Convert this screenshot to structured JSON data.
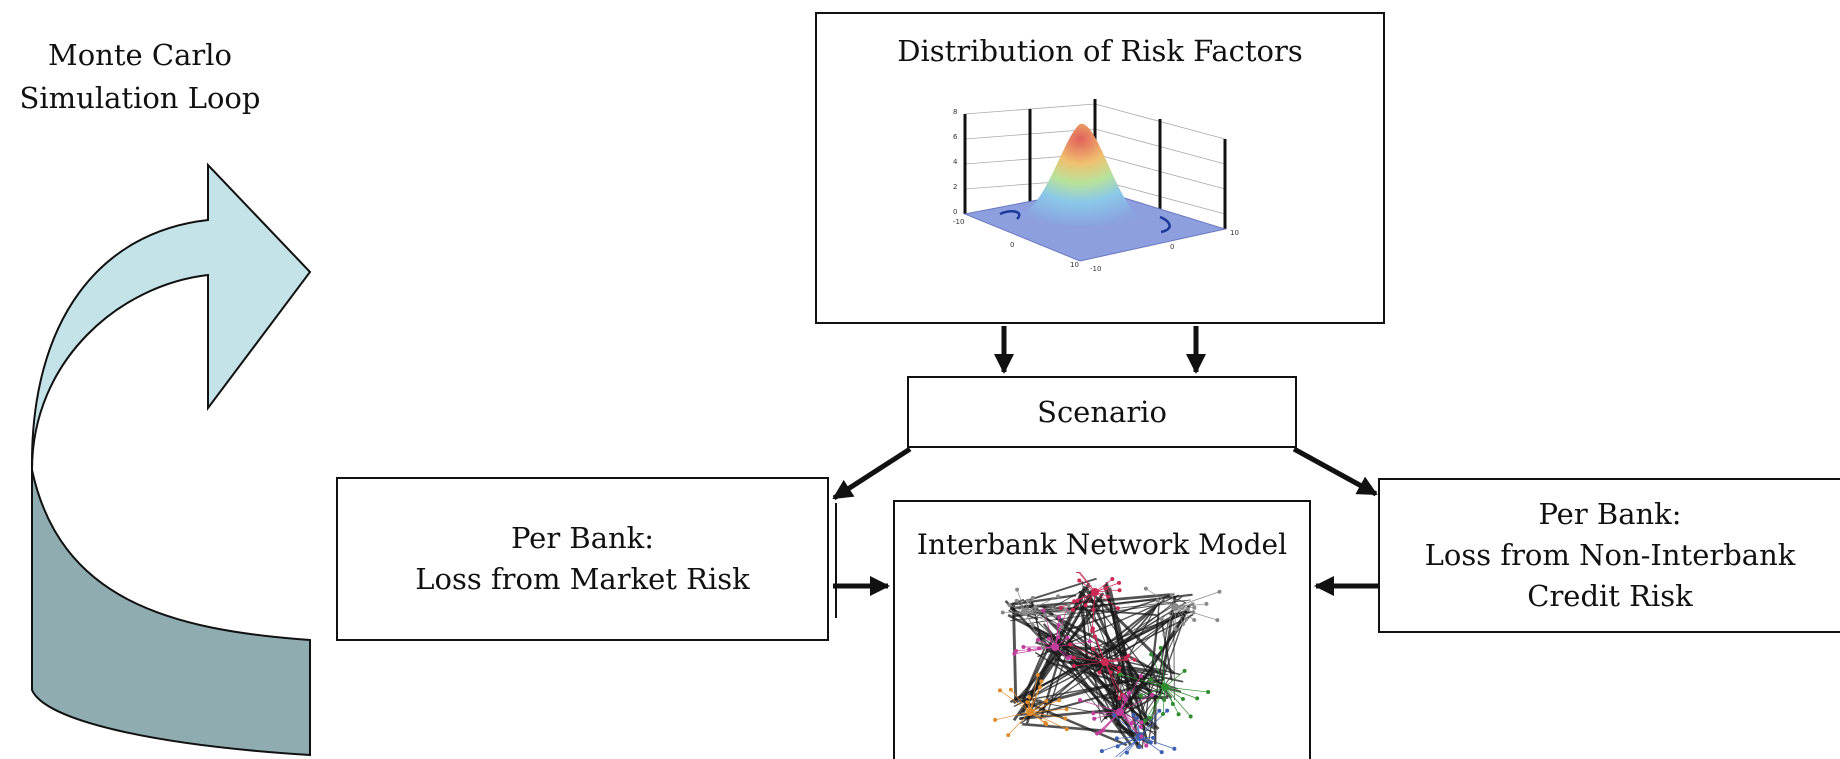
{
  "loop": {
    "line1": "Monte Carlo",
    "line2": "Simulation Loop",
    "front_color": "#c3e3e8",
    "back_color": "#8fadb1"
  },
  "distribution": {
    "title": "Distribution of Risk Factors",
    "z_ticks": [
      "0",
      "2",
      "4",
      "6",
      "8"
    ],
    "x_ticks": [
      "-10",
      "0",
      "10"
    ],
    "y_ticks": [
      "-10",
      "0",
      "10"
    ]
  },
  "scenario": {
    "label": "Scenario"
  },
  "market_risk": {
    "line1": "Per Bank:",
    "line2": "Loss from Market Risk"
  },
  "network": {
    "title": "Interbank Network Model",
    "cluster_colors": [
      "#cc2a55",
      "#c23d9b",
      "#e08a2a",
      "#2f8f2f",
      "#8a8a8a",
      "#3a5fb0"
    ]
  },
  "credit_risk": {
    "line1": "Per Bank:",
    "line2": "Loss from Non-Interbank",
    "line3": "Credit Risk"
  }
}
